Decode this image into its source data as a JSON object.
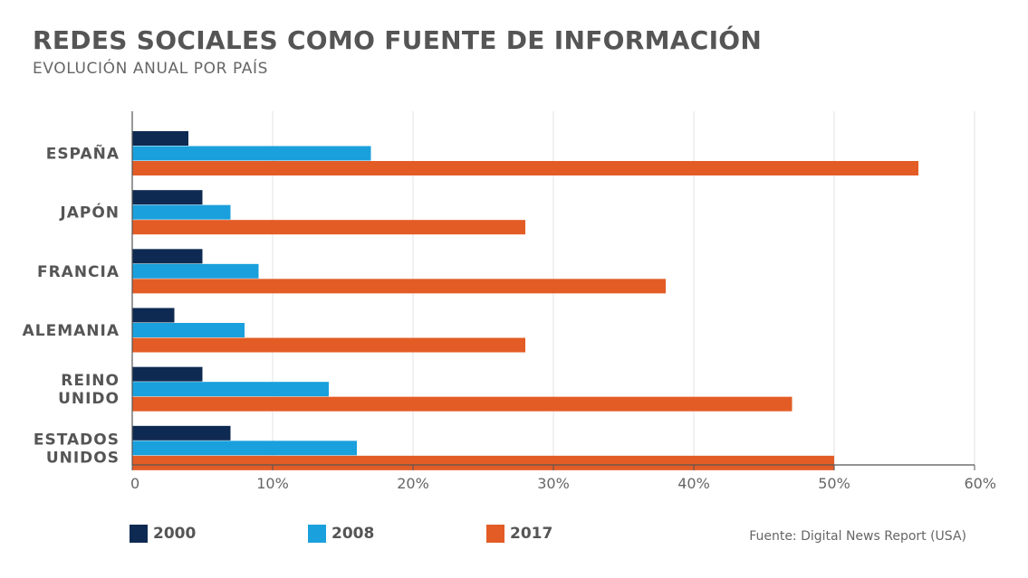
{
  "header": {
    "title": "REDES SOCIALES COMO FUENTE DE INFORMACIÓN",
    "subtitle": "EVOLUCIÓN ANUAL POR PAÍS"
  },
  "chart_data": {
    "type": "bar",
    "orientation": "horizontal",
    "categories": [
      [
        "ESPAÑA"
      ],
      [
        "JAPÓN"
      ],
      [
        "FRANCIA"
      ],
      [
        "ALEMANIA"
      ],
      [
        "REINO",
        "UNIDO"
      ],
      [
        "ESTADOS",
        "UNIDOS"
      ]
    ],
    "series": [
      {
        "name": "2000",
        "color": "#0e2a52",
        "values": [
          4,
          5,
          5,
          3,
          5,
          7
        ]
      },
      {
        "name": "2008",
        "color": "#1aa0dc",
        "values": [
          17,
          7,
          9,
          8,
          14,
          16
        ]
      },
      {
        "name": "2017",
        "color": "#e35c26",
        "values": [
          56,
          28,
          38,
          28,
          47,
          50
        ]
      }
    ],
    "xlim": [
      0,
      60
    ],
    "xticks": [
      0,
      10,
      20,
      30,
      40,
      50,
      60
    ],
    "xtick_labels": [
      "0",
      "10%",
      "20%",
      "30%",
      "40%",
      "50%",
      "60%"
    ],
    "grid": true,
    "legend_position": "bottom-left"
  },
  "legend": [
    {
      "label": "2000",
      "color": "#0e2a52"
    },
    {
      "label": "2008",
      "color": "#1aa0dc"
    },
    {
      "label": "2017",
      "color": "#e35c26"
    }
  ],
  "source": "Fuente: Digital News Report (USA)"
}
